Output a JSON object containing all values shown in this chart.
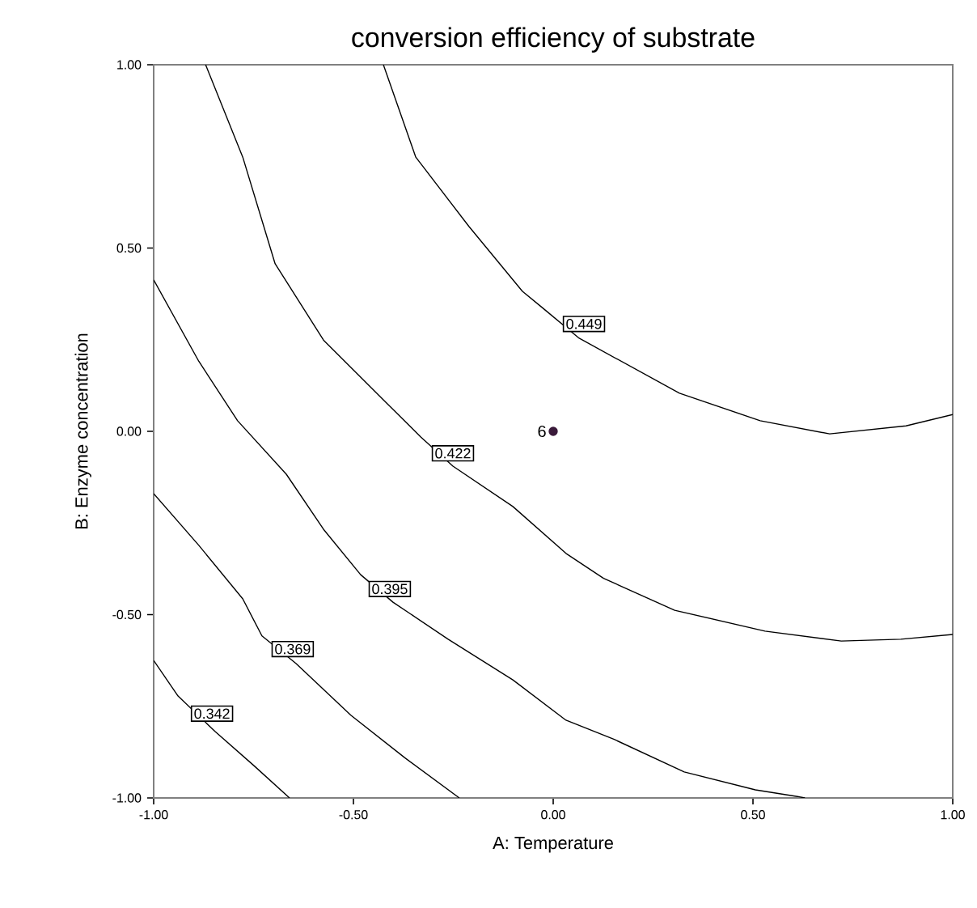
{
  "chart_data": {
    "type": "line",
    "title": "conversion efficiency of substrate",
    "xlabel": "A: Temperature",
    "ylabel": "B: Enzyme concentration",
    "xlim": [
      -1,
      1
    ],
    "ylim": [
      -1,
      1
    ],
    "xticks": [
      {
        "value": -1,
        "label": "-1.00"
      },
      {
        "value": -0.5,
        "label": "-0.50"
      },
      {
        "value": 0,
        "label": "0.00"
      },
      {
        "value": 0.5,
        "label": "0.50"
      },
      {
        "value": 1,
        "label": "1.00"
      }
    ],
    "yticks": [
      {
        "value": -1,
        "label": "-1.00"
      },
      {
        "value": -0.5,
        "label": "-0.50"
      },
      {
        "value": 0,
        "label": "0.00"
      },
      {
        "value": 0.5,
        "label": "0.50"
      },
      {
        "value": 1,
        "label": "1.00"
      }
    ],
    "marker": "none",
    "line_style": "solid",
    "series": [
      {
        "color": "#000000",
        "x": [
          -0.425,
          -0.344,
          -0.211,
          -0.077,
          -0.028,
          0.065,
          0.316,
          0.518,
          0.692,
          0.883,
          1.0
        ],
        "values": [
          1.0,
          0.748,
          0.559,
          0.382,
          0.338,
          0.254,
          0.104,
          0.029,
          -0.007,
          0.015,
          0.046
        ]
      },
      {
        "color": "#000000",
        "x": [
          -0.87,
          -0.777,
          -0.696,
          -0.575,
          -0.413,
          -0.332,
          -0.251,
          -0.101,
          0.032,
          0.126,
          0.304,
          0.53,
          0.721,
          0.87,
          1.0
        ],
        "values": [
          1.0,
          0.748,
          0.457,
          0.249,
          0.073,
          -0.015,
          -0.095,
          -0.205,
          -0.333,
          -0.401,
          -0.488,
          -0.545,
          -0.572,
          -0.567,
          -0.554
        ]
      },
      {
        "color": "#000000",
        "x": [
          -1.0,
          -0.887,
          -0.79,
          -0.668,
          -0.575,
          -0.482,
          -0.401,
          -0.263,
          -0.101,
          0.032,
          0.154,
          0.328,
          0.506,
          0.611,
          0.63
        ],
        "values": [
          0.413,
          0.191,
          0.029,
          -0.117,
          -0.267,
          -0.391,
          -0.466,
          -0.567,
          -0.678,
          -0.788,
          -0.841,
          -0.929,
          -0.978,
          -0.996,
          -1.0
        ]
      },
      {
        "color": "#000000",
        "x": [
          -1.0,
          -0.887,
          -0.777,
          -0.729,
          -0.644,
          -0.506,
          -0.372,
          -0.235
        ],
        "values": [
          -0.17,
          -0.311,
          -0.457,
          -0.558,
          -0.633,
          -0.775,
          -0.89,
          -1.0
        ]
      },
      {
        "color": "#000000",
        "x": [
          -1.0,
          -0.939,
          -0.846,
          -0.749,
          -0.66
        ],
        "values": [
          -0.625,
          -0.722,
          -0.819,
          -0.912,
          -1.0
        ]
      },
      {
        "type": "scatter",
        "marker": "circle",
        "color": "#3a1a3a",
        "x": [
          0
        ],
        "values": [
          0
        ]
      }
    ],
    "annotations": [
      {
        "text": "0.449",
        "x": 0.077,
        "y": 0.293
      },
      {
        "text": "0.422",
        "x": -0.251,
        "y": -0.06
      },
      {
        "text": "0.395",
        "x": -0.409,
        "y": -0.43
      },
      {
        "text": "0.369",
        "x": -0.652,
        "y": -0.594
      },
      {
        "text": "0.342",
        "x": -0.854,
        "y": -0.77
      },
      {
        "text": "6",
        "x": 0,
        "y": 0
      }
    ]
  }
}
